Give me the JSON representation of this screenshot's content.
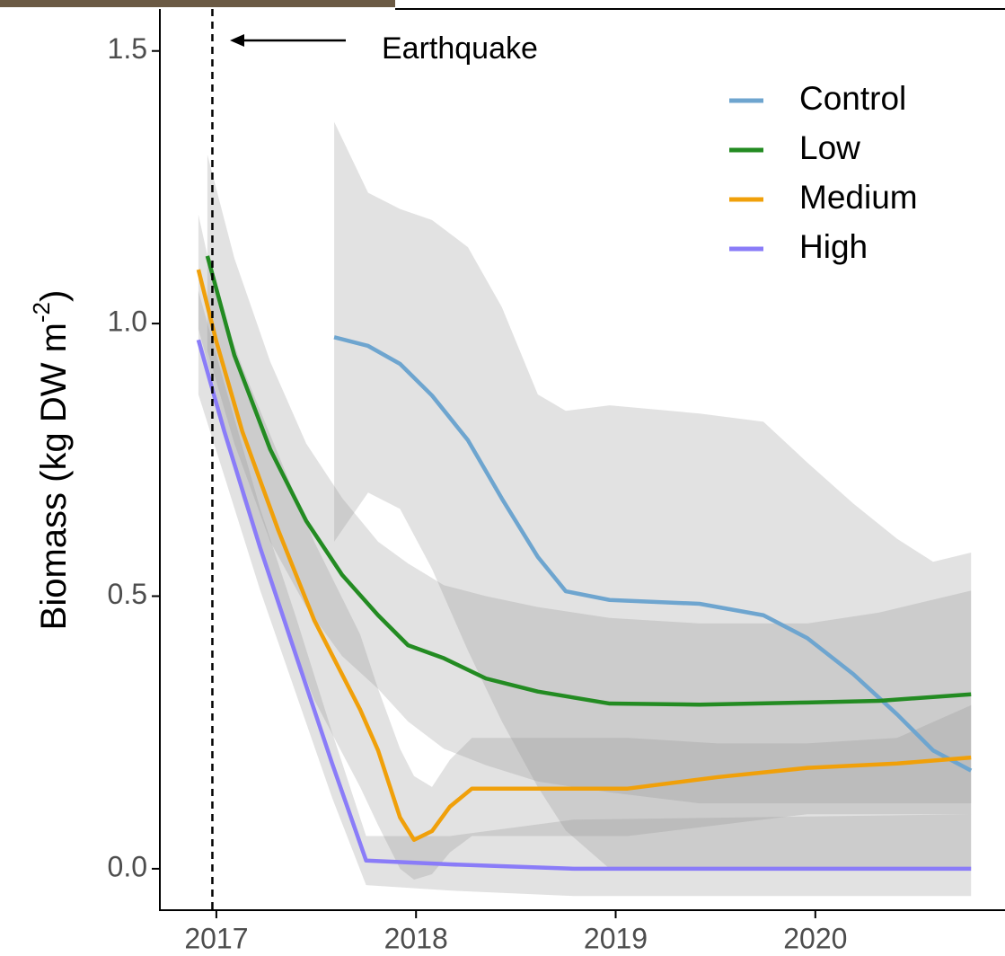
{
  "chart_data": {
    "type": "line",
    "ylabel": {
      "main": "Biomass (kg DW m",
      "sup": "-2",
      "end": ")"
    },
    "annotation": {
      "text": "Earthquake",
      "x": 2016.98
    },
    "xlim": [
      2016.717,
      2020.95
    ],
    "ylim": [
      -0.076,
      1.577
    ],
    "xticks": [
      2017,
      2018,
      2019,
      2020
    ],
    "yticks": [
      {
        "value": 0,
        "label": "0.0"
      },
      0.5,
      {
        "value": 1,
        "label": "1.0"
      },
      1.5
    ],
    "band_color": "rgba(140,140,140,0.25)",
    "legend": "top-right",
    "series": [
      {
        "name": "Control",
        "color": "#6ea5cf",
        "x": [
          2017.59,
          2017.76,
          2017.92,
          2018.08,
          2018.26,
          2018.43,
          2018.61,
          2018.75,
          2018.97,
          2019.42,
          2019.74,
          2019.96,
          2020.19,
          2020.41,
          2020.59,
          2020.78
        ],
        "values": [
          0.975,
          0.959,
          0.926,
          0.868,
          0.786,
          0.679,
          0.572,
          0.509,
          0.493,
          0.486,
          0.465,
          0.423,
          0.357,
          0.283,
          0.217,
          0.18
        ],
        "upper": [
          1.37,
          1.24,
          1.21,
          1.19,
          1.14,
          1.03,
          0.87,
          0.84,
          0.85,
          0.835,
          0.82,
          0.745,
          0.67,
          0.605,
          0.563,
          0.58
        ],
        "lower": [
          0.6,
          0.69,
          0.66,
          0.55,
          0.4,
          0.27,
          0.15,
          0.07,
          0,
          0,
          0,
          0,
          0,
          0,
          0,
          0
        ]
      },
      {
        "name": "Low",
        "color": "#238b22",
        "x": [
          2016.955,
          2017.09,
          2017.27,
          2017.45,
          2017.63,
          2017.81,
          2017.96,
          2018.14,
          2018.35,
          2018.61,
          2018.97,
          2019.42,
          2019.96,
          2020.32,
          2020.78
        ],
        "values": [
          1.124,
          0.942,
          0.769,
          0.638,
          0.539,
          0.465,
          0.41,
          0.386,
          0.349,
          0.325,
          0.303,
          0.301,
          0.305,
          0.308,
          0.32
        ],
        "upper": [
          1.31,
          1.12,
          0.93,
          0.78,
          0.68,
          0.6,
          0.56,
          0.52,
          0.5,
          0.48,
          0.46,
          0.45,
          0.45,
          0.47,
          0.51
        ],
        "lower": [
          0.95,
          0.78,
          0.6,
          0.48,
          0.39,
          0.33,
          0.27,
          0.22,
          0.19,
          0.16,
          0.14,
          0.12,
          0.12,
          0.12,
          0.12
        ]
      },
      {
        "name": "Medium",
        "color": "#f0a00a",
        "x": [
          2016.91,
          2017.0,
          2017.13,
          2017.31,
          2017.49,
          2017.72,
          2017.81,
          2017.92,
          2017.99,
          2018.08,
          2018.17,
          2018.28,
          2019.06,
          2019.51,
          2019.96,
          2020.41,
          2020.78
        ],
        "values": [
          1.099,
          0.967,
          0.802,
          0.621,
          0.456,
          0.292,
          0.217,
          0.094,
          0.053,
          0.069,
          0.114,
          0.147,
          0.147,
          0.168,
          0.185,
          0.193,
          0.204
        ],
        "upper": [
          1.2,
          1.05,
          0.92,
          0.76,
          0.6,
          0.43,
          0.33,
          0.22,
          0.17,
          0.15,
          0.2,
          0.24,
          0.24,
          0.23,
          0.23,
          0.24,
          0.3
        ],
        "lower": [
          0.99,
          0.87,
          0.68,
          0.48,
          0.31,
          0.15,
          0.08,
          0.0,
          -0.02,
          -0.01,
          0.03,
          0.06,
          0.06,
          0.08,
          0.1,
          0.1,
          0.1
        ]
      },
      {
        "name": "High",
        "color": "#8a7cf8",
        "x": [
          2016.91,
          2017.04,
          2017.22,
          2017.4,
          2017.58,
          2017.75,
          2018.17,
          2018.79,
          2020.78
        ],
        "values": [
          0.97,
          0.802,
          0.588,
          0.39,
          0.193,
          0.015,
          0.008,
          0,
          0
        ],
        "upper": [
          1.06,
          0.89,
          0.66,
          0.46,
          0.25,
          0.06,
          0.06,
          0.09,
          0.1
        ],
        "lower": [
          0.87,
          0.72,
          0.51,
          0.32,
          0.13,
          -0.03,
          -0.04,
          -0.05,
          -0.05
        ]
      }
    ]
  }
}
